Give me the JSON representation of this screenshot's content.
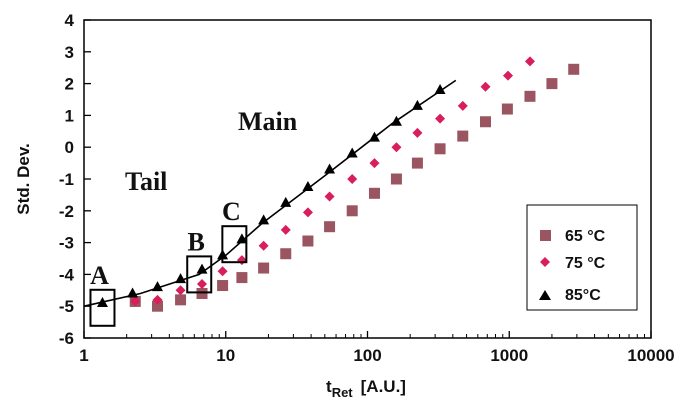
{
  "chart_data": {
    "type": "scatter",
    "x_scale": "log",
    "xlim": [
      1,
      10000
    ],
    "ylim": [
      -6,
      4
    ],
    "x_ticks": [
      1,
      10,
      100,
      1000,
      10000
    ],
    "y_ticks": [
      -6,
      -5,
      -4,
      -3,
      -2,
      -1,
      0,
      1,
      2,
      3,
      4
    ],
    "x_tick_labels": [
      "1",
      "10",
      "100",
      "1000",
      "10000"
    ],
    "y_tick_labels": [
      "-6",
      "-5",
      "-4",
      "-3",
      "-2",
      "-1",
      "0",
      "1",
      "2",
      "3",
      "4"
    ],
    "xlabel_main": "t",
    "xlabel_sub": "Ret",
    "xlabel_unit": "[A.U.]",
    "ylabel": "Std. Dev.",
    "grid": false,
    "legend_position": "bottom-right",
    "series": [
      {
        "name": "65 °C",
        "marker": "square",
        "color": "#9a5560",
        "points": [
          [
            2.3,
            -4.85
          ],
          [
            3.3,
            -5.0
          ],
          [
            4.8,
            -4.8
          ],
          [
            6.8,
            -4.6
          ],
          [
            9.5,
            -4.35
          ],
          [
            13.0,
            -4.1
          ],
          [
            18.5,
            -3.8
          ],
          [
            26.5,
            -3.35
          ],
          [
            38,
            -2.95
          ],
          [
            54,
            -2.5
          ],
          [
            78,
            -2.0
          ],
          [
            112,
            -1.45
          ],
          [
            160,
            -1.0
          ],
          [
            225,
            -0.5
          ],
          [
            325,
            -0.05
          ],
          [
            470,
            0.35
          ],
          [
            680,
            0.8
          ],
          [
            970,
            1.2
          ],
          [
            1400,
            1.6
          ],
          [
            2000,
            2.0
          ],
          [
            2850,
            2.45
          ]
        ]
      },
      {
        "name": "75 °C",
        "marker": "diamond",
        "color": "#d81e5b",
        "points": [
          [
            2.3,
            -4.85
          ],
          [
            3.3,
            -4.8
          ],
          [
            4.8,
            -4.5
          ],
          [
            6.8,
            -4.3
          ],
          [
            9.5,
            -3.9
          ],
          [
            13.0,
            -3.55
          ],
          [
            18.5,
            -3.1
          ],
          [
            26.5,
            -2.6
          ],
          [
            38,
            -2.05
          ],
          [
            54,
            -1.55
          ],
          [
            78,
            -1.0
          ],
          [
            112,
            -0.5
          ],
          [
            160,
            0.0
          ],
          [
            225,
            0.45
          ],
          [
            325,
            0.9
          ],
          [
            470,
            1.3
          ],
          [
            680,
            1.9
          ],
          [
            980,
            2.25
          ],
          [
            1400,
            2.7
          ]
        ]
      },
      {
        "name": "85°C",
        "marker": "triangle",
        "color": "#000000",
        "points": [
          [
            1.35,
            -4.9
          ],
          [
            2.2,
            -4.6
          ],
          [
            3.3,
            -4.4
          ],
          [
            4.8,
            -4.15
          ],
          [
            6.8,
            -3.85
          ],
          [
            9.5,
            -3.4
          ],
          [
            13.0,
            -2.9
          ],
          [
            18.5,
            -2.3
          ],
          [
            26.5,
            -1.75
          ],
          [
            38,
            -1.25
          ],
          [
            54,
            -0.7
          ],
          [
            78,
            -0.2
          ],
          [
            112,
            0.3
          ],
          [
            160,
            0.8
          ],
          [
            225,
            1.3
          ],
          [
            325,
            1.8
          ]
        ]
      }
    ],
    "fit_line": [
      [
        1.0,
        -5.0
      ],
      [
        2.5,
        -4.6
      ],
      [
        6.5,
        -4.0
      ],
      [
        10,
        -3.4
      ],
      [
        18,
        -2.4
      ],
      [
        50,
        -0.9
      ],
      [
        150,
        0.75
      ],
      [
        420,
        2.1
      ]
    ],
    "annotations": [
      {
        "label": "A",
        "box": [
          1.35,
          -5.05
        ]
      },
      {
        "label": "B",
        "box": [
          6.5,
          -4.0
        ]
      },
      {
        "label": "C",
        "box": [
          11.5,
          -3.05
        ]
      }
    ],
    "region_labels": [
      {
        "label": "Tail"
      },
      {
        "label": "Main"
      }
    ]
  }
}
